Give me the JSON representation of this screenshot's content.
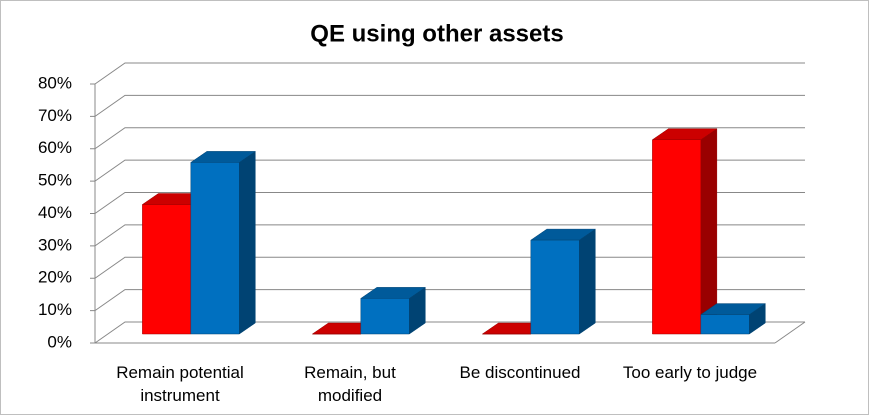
{
  "chart_data": {
    "type": "bar3d",
    "title": "QE using other assets",
    "categories": [
      "Remain potential instrument",
      "Remain, but modified",
      "Be discontinued",
      "Too early to judge"
    ],
    "series": [
      {
        "color": "#ff0000",
        "values": [
          40,
          0,
          0,
          60
        ]
      },
      {
        "color": "#0070c0",
        "values": [
          53,
          11,
          29,
          6
        ]
      }
    ],
    "ylim": [
      0,
      80
    ],
    "yticks": [
      {
        "value": 0,
        "label": "0%"
      },
      {
        "value": 10,
        "label": "10%"
      },
      {
        "value": 20,
        "label": "20%"
      },
      {
        "value": 30,
        "label": "30%"
      },
      {
        "value": 40,
        "label": "40%"
      },
      {
        "value": 50,
        "label": "50%"
      },
      {
        "value": 60,
        "label": "60%"
      },
      {
        "value": 70,
        "label": "70%"
      },
      {
        "value": 80,
        "label": "80%"
      }
    ],
    "grid": true
  }
}
